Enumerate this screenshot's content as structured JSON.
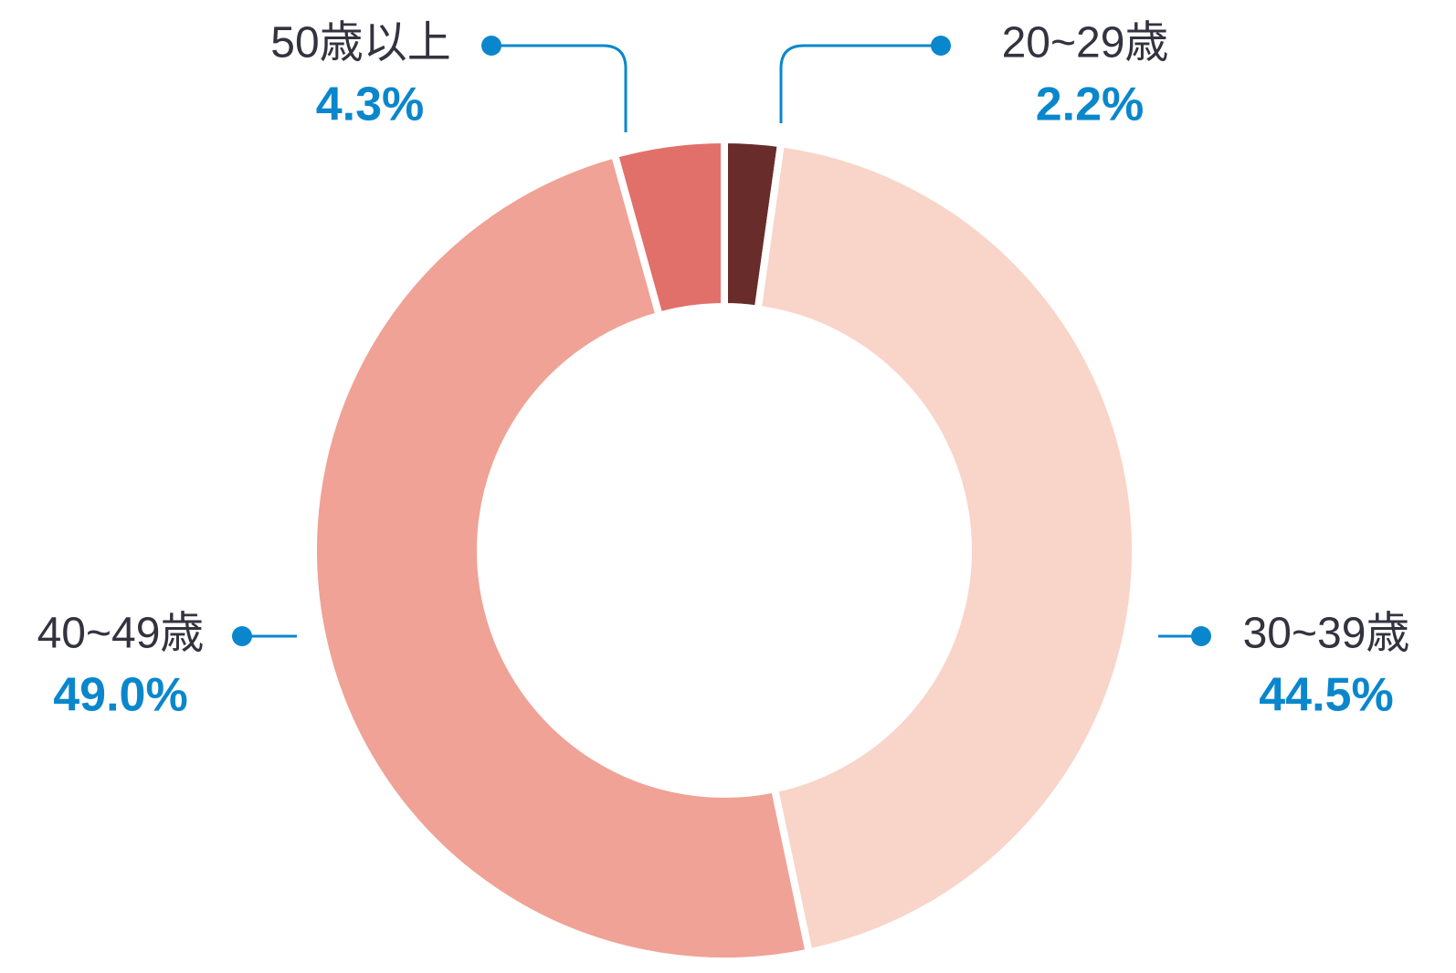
{
  "chart_data": {
    "type": "donut",
    "categories": [
      "20~29歳",
      "30~39歳",
      "40~49歳",
      "50歳以上"
    ],
    "values": [
      2.2,
      44.5,
      49.0,
      4.3
    ],
    "value_labels": [
      "2.2%",
      "44.5%",
      "49.0%",
      "4.3%"
    ],
    "colors": [
      "#682c2a",
      "#f9d4c8",
      "#efa295",
      "#e2706a"
    ]
  }
}
